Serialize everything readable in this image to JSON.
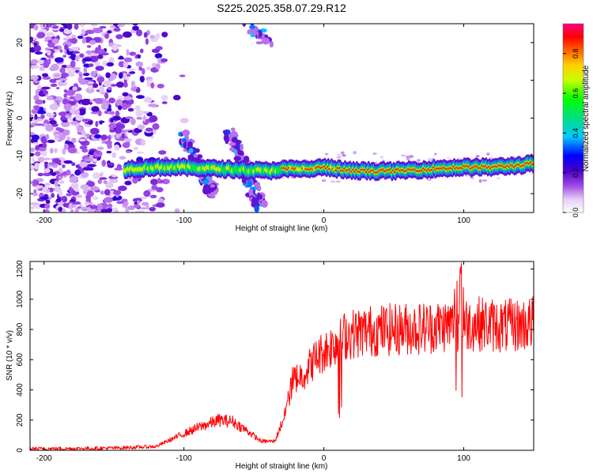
{
  "chart_data": [
    {
      "type": "heatmap",
      "title": "S225.2025.358.07.29.R12",
      "xlabel": "Height of straight line (km)",
      "ylabel": "Frequency (Hz)",
      "xlim": [
        -210,
        150
      ],
      "ylim": [
        -25,
        25
      ],
      "xticks": [
        -200,
        -100,
        0,
        100
      ],
      "yticks": [
        -20,
        -10,
        0,
        10,
        20
      ],
      "colorbar": {
        "label": "Normalized spectral amplitude",
        "range": [
          0,
          0.95
        ],
        "ticks": [
          0,
          0.2,
          0.4,
          0.6,
          0.8
        ],
        "tick_labels": [
          "0.0",
          "0.2",
          "0.4",
          "0.6",
          "0.8"
        ]
      },
      "features": [
        {
          "name": "main_trace",
          "points": [
            [
              -140,
              -13.5
            ],
            [
              -120,
              -13
            ],
            [
              -100,
              -13
            ],
            [
              -40,
              -14
            ],
            [
              -30,
              -13.5
            ],
            [
              -10,
              -13.5
            ],
            [
              0,
              -13
            ],
            [
              20,
              -14
            ],
            [
              50,
              -14
            ],
            [
              100,
              -13
            ],
            [
              120,
              -13
            ],
            [
              140,
              -12.5
            ],
            [
              150,
              -12
            ]
          ]
        },
        {
          "name": "slant_band_1",
          "points": [
            [
              -100,
              -5
            ],
            [
              -78,
              -20
            ]
          ]
        },
        {
          "name": "slant_band_2",
          "points": [
            [
              -68,
              -4
            ],
            [
              -45,
              -23
            ]
          ]
        },
        {
          "name": "upper_fragment",
          "points": [
            [
              -55,
              25
            ],
            [
              -40,
              20
            ]
          ]
        }
      ]
    },
    {
      "type": "line",
      "xlabel": "Height of straight line (km)",
      "ylabel": "SNR (10 * v/v)",
      "xlim": [
        -210,
        150
      ],
      "ylim": [
        0,
        1250
      ],
      "xticks": [
        -200,
        -100,
        0,
        100
      ],
      "yticks": [
        0,
        200,
        400,
        600,
        800,
        1000,
        1200
      ],
      "series": [
        {
          "name": "SNR",
          "color": "#ff0000",
          "x": [
            -210,
            -180,
            -150,
            -120,
            -105,
            -90,
            -75,
            -65,
            -55,
            -45,
            -35,
            -28,
            -22,
            -15,
            -5,
            5,
            15,
            30,
            50,
            70,
            90,
            110,
            130,
            150
          ],
          "values": [
            10,
            12,
            15,
            25,
            90,
            150,
            200,
            190,
            130,
            60,
            60,
            230,
            470,
            500,
            620,
            690,
            760,
            790,
            800,
            810,
            830,
            840,
            820,
            840
          ]
        }
      ]
    }
  ]
}
